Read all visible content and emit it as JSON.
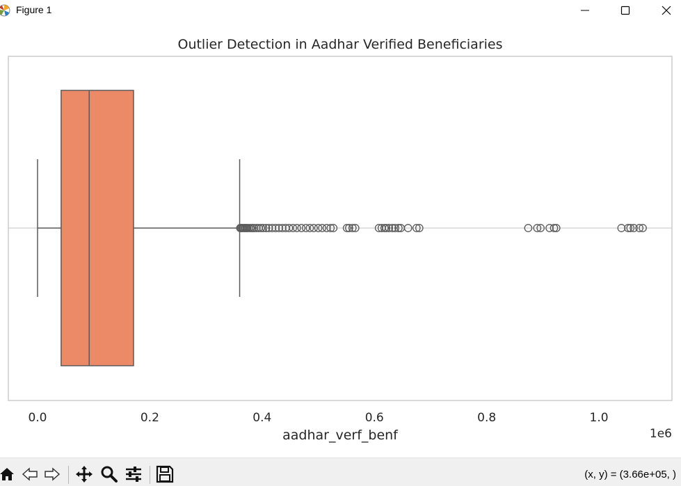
{
  "window": {
    "title": "Figure 1",
    "icons": [
      "matplotlib-logo-icon",
      "minimize-icon",
      "maximize-icon",
      "close-icon"
    ]
  },
  "toolbar": {
    "buttons": [
      "home-icon",
      "back-icon",
      "forward-icon",
      "pan-icon",
      "zoom-icon",
      "configure-subplots-icon",
      "save-icon"
    ],
    "coords_text": "(x, y) = (3.66e+05, )"
  },
  "chart_data": {
    "type": "boxplot",
    "orientation": "horizontal",
    "title": "Outlier Detection in Aadhar Verified Beneficiaries",
    "xlabel": "aadhar_verf_benf",
    "ylabel": "",
    "offset_label": "1e6",
    "xlim": [
      -0.052,
      1.13
    ],
    "xticks": [
      0.0,
      0.2,
      0.4,
      0.6,
      0.8,
      1.0
    ],
    "xtick_labels": [
      "0.0",
      "0.2",
      "0.4",
      "0.6",
      "0.8",
      "1.0"
    ],
    "scale_factor": 1000000,
    "grid": true,
    "box_color": "#ec8966",
    "line_color": "#5a5a5a",
    "box": {
      "whisker_low": 0.0,
      "q1": 0.042,
      "median": 0.092,
      "q3": 0.171,
      "whisker_high": 0.36
    },
    "outliers": [
      0.361,
      0.362,
      0.364,
      0.366,
      0.368,
      0.37,
      0.372,
      0.374,
      0.377,
      0.38,
      0.383,
      0.386,
      0.39,
      0.394,
      0.398,
      0.402,
      0.407,
      0.412,
      0.418,
      0.424,
      0.43,
      0.436,
      0.442,
      0.448,
      0.455,
      0.462,
      0.47,
      0.478,
      0.485,
      0.492,
      0.5,
      0.507,
      0.515,
      0.522,
      0.527,
      0.551,
      0.555,
      0.561,
      0.566,
      0.608,
      0.613,
      0.618,
      0.621,
      0.626,
      0.632,
      0.637,
      0.643,
      0.647,
      0.66,
      0.675,
      0.68,
      0.874,
      0.89,
      0.896,
      0.912,
      0.92,
      0.924,
      1.04,
      1.052,
      1.056,
      1.062,
      1.072,
      1.078
    ]
  }
}
